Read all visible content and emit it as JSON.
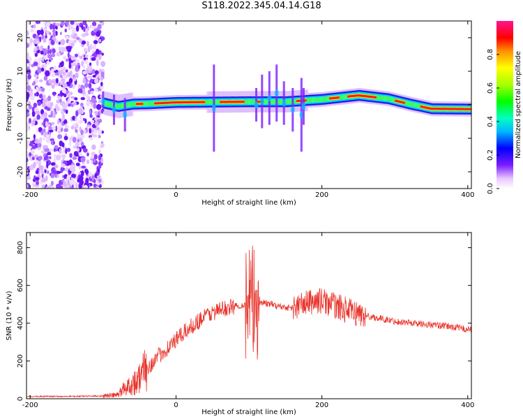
{
  "title": "S118.2022.345.04.14.G18",
  "chart_data": [
    {
      "type": "heatmap",
      "xlabel": "Height of straight line (km)",
      "ylabel": "Frequency (Hz)",
      "xlim": [
        -205,
        405
      ],
      "ylim": [
        -25,
        25
      ],
      "xticks": [
        -200,
        0,
        200,
        400
      ],
      "yticks": [
        -20,
        -10,
        0,
        10,
        20
      ],
      "colorbar": {
        "label": "Normalized spectral amplitude",
        "range": [
          0,
          1
        ],
        "ticks": [
          0.0,
          0.2,
          0.4,
          0.6,
          0.8
        ]
      },
      "ridge": [
        {
          "x": -100,
          "y": 0.5
        },
        {
          "x": -80,
          "y": -0.5
        },
        {
          "x": -60,
          "y": 0.2
        },
        {
          "x": -40,
          "y": 0.3
        },
        {
          "x": 0,
          "y": 0.7
        },
        {
          "x": 50,
          "y": 0.8
        },
        {
          "x": 100,
          "y": 0.9
        },
        {
          "x": 150,
          "y": 0.9
        },
        {
          "x": 200,
          "y": 1.6
        },
        {
          "x": 250,
          "y": 2.8
        },
        {
          "x": 290,
          "y": 1.8
        },
        {
          "x": 320,
          "y": 0.2
        },
        {
          "x": 350,
          "y": -1.2
        },
        {
          "x": 405,
          "y": -1.3
        }
      ]
    },
    {
      "type": "line",
      "xlabel": "Height of straight line (km)",
      "ylabel": "SNR (10 * v/v)",
      "xlim": [
        -205,
        405
      ],
      "ylim": [
        0,
        880
      ],
      "xticks": [
        -200,
        0,
        200,
        400
      ],
      "yticks": [
        0,
        200,
        400,
        600,
        800
      ],
      "series_color": "#e8332b",
      "envelope": [
        {
          "x": -205,
          "y": 12
        },
        {
          "x": -150,
          "y": 12
        },
        {
          "x": -100,
          "y": 15
        },
        {
          "x": -80,
          "y": 20
        },
        {
          "x": -70,
          "y": 60
        },
        {
          "x": -55,
          "y": 90
        },
        {
          "x": -40,
          "y": 160
        },
        {
          "x": -20,
          "y": 240
        },
        {
          "x": 0,
          "y": 310
        },
        {
          "x": 20,
          "y": 380
        },
        {
          "x": 40,
          "y": 440
        },
        {
          "x": 60,
          "y": 470
        },
        {
          "x": 80,
          "y": 490
        },
        {
          "x": 100,
          "y": 500
        },
        {
          "x": 120,
          "y": 510
        },
        {
          "x": 140,
          "y": 490
        },
        {
          "x": 160,
          "y": 480
        },
        {
          "x": 180,
          "y": 510
        },
        {
          "x": 200,
          "y": 520
        },
        {
          "x": 220,
          "y": 490
        },
        {
          "x": 240,
          "y": 460
        },
        {
          "x": 260,
          "y": 440
        },
        {
          "x": 280,
          "y": 425
        },
        {
          "x": 300,
          "y": 410
        },
        {
          "x": 340,
          "y": 395
        },
        {
          "x": 380,
          "y": 380
        },
        {
          "x": 405,
          "y": 365
        }
      ]
    }
  ]
}
